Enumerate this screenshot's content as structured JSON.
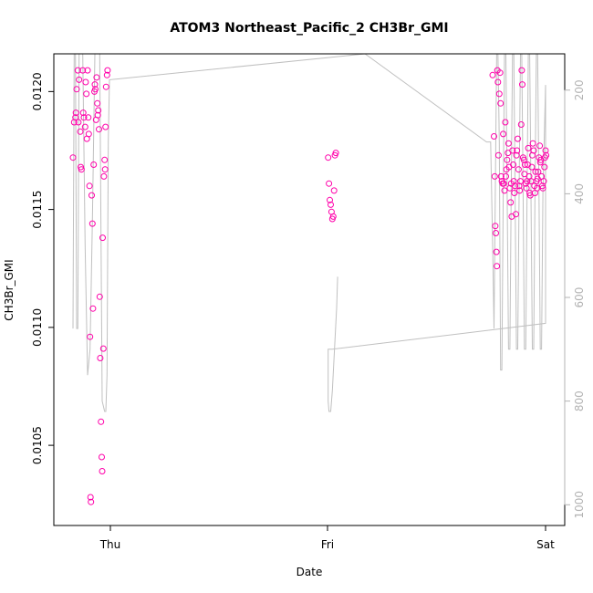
{
  "chart_data": {
    "type": "scatter",
    "title": "ATOM3 Northeast_Pacific_2 CH3Br_GMI",
    "xlabel": "Date",
    "ylabel": "CH3Br_GMI",
    "x_ticks": [
      "Thu",
      "Fri",
      "Sat"
    ],
    "y_ticks": [
      "0.0105",
      "0.0110",
      "0.0115",
      "0.0120"
    ],
    "ylim": [
      0.01016,
      0.01216
    ],
    "y2_ticks": [
      "200",
      "400",
      "600",
      "800",
      "1000"
    ],
    "y2lim": [
      1040,
      130
    ],
    "colors": {
      "points": "#ff00aa",
      "pressure_line": "#c0c0c0",
      "right_axis": "#b3b3b3"
    },
    "series": [
      {
        "type": "scatter",
        "points": [
          [
            -0.17,
            0.01172
          ],
          [
            -0.165,
            0.01187
          ],
          [
            -0.16,
            0.01189
          ],
          [
            -0.158,
            0.01191
          ],
          [
            -0.155,
            0.01201
          ],
          [
            -0.15,
            0.01209
          ],
          [
            -0.148,
            0.01187
          ],
          [
            -0.145,
            0.01205
          ],
          [
            -0.14,
            0.01183
          ],
          [
            -0.138,
            0.01168
          ],
          [
            -0.135,
            0.01167
          ],
          [
            -0.13,
            0.01209
          ],
          [
            -0.128,
            0.01191
          ],
          [
            -0.125,
            0.01189
          ],
          [
            -0.12,
            0.01185
          ],
          [
            -0.118,
            0.01204
          ],
          [
            -0.115,
            0.01199
          ],
          [
            -0.113,
            0.0118
          ],
          [
            -0.11,
            0.01209
          ],
          [
            -0.107,
            0.01189
          ],
          [
            -0.105,
            0.01182
          ],
          [
            -0.102,
            0.0116
          ],
          [
            -0.1,
            0.01096
          ],
          [
            -0.098,
            0.01028
          ],
          [
            -0.096,
            0.01026
          ],
          [
            -0.093,
            0.01156
          ],
          [
            -0.09,
            0.01144
          ],
          [
            -0.088,
            0.01108
          ],
          [
            -0.085,
            0.01169
          ],
          [
            -0.082,
            0.012
          ],
          [
            -0.08,
            0.01203
          ],
          [
            -0.078,
            0.01201
          ],
          [
            -0.075,
            0.01188
          ],
          [
            -0.073,
            0.01206
          ],
          [
            -0.07,
            0.01195
          ],
          [
            -0.068,
            0.0119
          ],
          [
            -0.066,
            0.01192
          ],
          [
            -0.063,
            0.01184
          ],
          [
            -0.06,
            0.01113
          ],
          [
            -0.058,
            0.01087
          ],
          [
            -0.055,
            0.0106
          ],
          [
            -0.052,
            0.01045
          ],
          [
            -0.05,
            0.01039
          ],
          [
            -0.048,
            0.01138
          ],
          [
            -0.045,
            0.01091
          ],
          [
            -0.043,
            0.01164
          ],
          [
            -0.04,
            0.01171
          ],
          [
            -0.038,
            0.01167
          ],
          [
            -0.036,
            0.01185
          ],
          [
            -0.034,
            0.01202
          ],
          [
            -0.03,
            0.01207
          ],
          [
            -0.028,
            0.01209
          ],
          [
            0.01,
            0.01172
          ],
          [
            0.012,
            0.01161
          ],
          [
            0.014,
            0.01154
          ],
          [
            0.016,
            0.01152
          ],
          [
            0.018,
            0.01149
          ],
          [
            0.02,
            0.01146
          ],
          [
            0.022,
            0.01147
          ],
          [
            0.024,
            0.01158
          ],
          [
            0.026,
            0.01173
          ],
          [
            0.028,
            0.01174
          ],
          [
            0.8,
            0.01207
          ],
          [
            0.805,
            0.01181
          ],
          [
            0.808,
            0.01164
          ],
          [
            0.81,
            0.01143
          ],
          [
            0.812,
            0.0114
          ],
          [
            0.814,
            0.01132
          ],
          [
            0.816,
            0.01126
          ],
          [
            0.818,
            0.01209
          ],
          [
            0.82,
            0.01204
          ],
          [
            0.822,
            0.01173
          ],
          [
            0.825,
            0.01199
          ],
          [
            0.828,
            0.01208
          ],
          [
            0.83,
            0.01195
          ],
          [
            0.832,
            0.01164
          ],
          [
            0.835,
            0.01162
          ],
          [
            0.838,
            0.01161
          ],
          [
            0.84,
            0.01182
          ],
          [
            0.842,
            0.01161
          ],
          [
            0.845,
            0.01158
          ],
          [
            0.848,
            0.01187
          ],
          [
            0.85,
            0.01164
          ],
          [
            0.852,
            0.01167
          ],
          [
            0.855,
            0.01171
          ],
          [
            0.858,
            0.01174
          ],
          [
            0.86,
            0.01178
          ],
          [
            0.862,
            0.01168
          ],
          [
            0.865,
            0.01159
          ],
          [
            0.868,
            0.01153
          ],
          [
            0.87,
            0.01161
          ],
          [
            0.872,
            0.01147
          ],
          [
            0.875,
            0.01175
          ],
          [
            0.878,
            0.01169
          ],
          [
            0.88,
            0.01162
          ],
          [
            0.882,
            0.01157
          ],
          [
            0.885,
            0.0116
          ],
          [
            0.888,
            0.01148
          ],
          [
            0.89,
            0.01173
          ],
          [
            0.892,
            0.01175
          ],
          [
            0.895,
            0.0118
          ],
          [
            0.898,
            0.01167
          ],
          [
            0.9,
            0.0116
          ],
          [
            0.902,
            0.01158
          ],
          [
            0.905,
            0.01162
          ],
          [
            0.908,
            0.01186
          ],
          [
            0.91,
            0.01209
          ],
          [
            0.912,
            0.01203
          ],
          [
            0.915,
            0.01172
          ],
          [
            0.918,
            0.01171
          ],
          [
            0.92,
            0.01165
          ],
          [
            0.922,
            0.01169
          ],
          [
            0.925,
            0.01161
          ],
          [
            0.928,
            0.01159
          ],
          [
            0.93,
            0.01162
          ],
          [
            0.932,
            0.01169
          ],
          [
            0.935,
            0.01176
          ],
          [
            0.938,
            0.01164
          ],
          [
            0.94,
            0.01157
          ],
          [
            0.942,
            0.01156
          ],
          [
            0.945,
            0.01162
          ],
          [
            0.948,
            0.01168
          ],
          [
            0.95,
            0.01173
          ],
          [
            0.952,
            0.01178
          ],
          [
            0.955,
            0.01175
          ],
          [
            0.958,
            0.0116
          ],
          [
            0.96,
            0.01157
          ],
          [
            0.962,
            0.01166
          ],
          [
            0.965,
            0.01162
          ],
          [
            0.968,
            0.01159
          ],
          [
            0.97,
            0.01163
          ],
          [
            0.972,
            0.01166
          ],
          [
            0.975,
            0.01172
          ],
          [
            0.978,
            0.01177
          ],
          [
            0.98,
            0.0117
          ],
          [
            0.982,
            0.01171
          ],
          [
            0.985,
            0.01164
          ],
          [
            0.988,
            0.0116
          ],
          [
            0.99,
            0.01159
          ],
          [
            0.993,
            0.01162
          ],
          [
            0.996,
            0.01168
          ],
          [
            0.998,
            0.01172
          ],
          [
            1.0,
            0.01175
          ],
          [
            1.002,
            0.01173
          ]
        ]
      },
      {
        "type": "line",
        "axis": "right",
        "points": [
          [
            -0.17,
            660
          ],
          [
            -0.165,
            120
          ],
          [
            -0.16,
            120
          ],
          [
            -0.155,
            660
          ],
          [
            -0.15,
            660
          ],
          [
            -0.145,
            120
          ],
          [
            -0.14,
            120
          ],
          [
            -0.13,
            120
          ],
          [
            -0.12,
            500
          ],
          [
            -0.11,
            750
          ],
          [
            -0.1,
            700
          ],
          [
            -0.09,
            450
          ],
          [
            -0.08,
            120
          ],
          [
            -0.06,
            120
          ],
          [
            -0.05,
            800
          ],
          [
            -0.04,
            820
          ],
          [
            -0.035,
            820
          ],
          [
            -0.03,
            750
          ],
          [
            -0.025,
            300
          ],
          [
            -0.02,
            180
          ],
          [
            0.17,
            130
          ],
          [
            0.77,
            300
          ],
          [
            0.79,
            300
          ],
          [
            0.8,
            500
          ],
          [
            0.805,
            660
          ],
          [
            0.81,
            400
          ],
          [
            0.815,
            120
          ],
          [
            0.82,
            120
          ],
          [
            0.825,
            300
          ],
          [
            0.83,
            740
          ],
          [
            0.835,
            740
          ],
          [
            0.84,
            400
          ],
          [
            0.845,
            120
          ],
          [
            0.85,
            120
          ],
          [
            0.855,
            400
          ],
          [
            0.86,
            700
          ],
          [
            0.865,
            700
          ],
          [
            0.87,
            400
          ],
          [
            0.875,
            120
          ],
          [
            0.88,
            120
          ],
          [
            0.885,
            400
          ],
          [
            0.89,
            700
          ],
          [
            0.895,
            700
          ],
          [
            0.9,
            400
          ],
          [
            0.905,
            120
          ],
          [
            0.91,
            120
          ],
          [
            0.915,
            400
          ],
          [
            0.92,
            700
          ],
          [
            0.925,
            700
          ],
          [
            0.93,
            400
          ],
          [
            0.935,
            120
          ],
          [
            0.94,
            120
          ],
          [
            0.945,
            400
          ],
          [
            0.95,
            700
          ],
          [
            0.955,
            700
          ],
          [
            0.96,
            400
          ],
          [
            0.965,
            120
          ],
          [
            0.97,
            120
          ],
          [
            0.975,
            400
          ],
          [
            0.98,
            700
          ],
          [
            0.985,
            700
          ],
          [
            0.99,
            400
          ],
          [
            1.0,
            190
          ],
          [
            1.0,
            650
          ],
          [
            0.02,
            700
          ],
          [
            0.01,
            700
          ],
          [
            0.01,
            800
          ],
          [
            0.012,
            820
          ],
          [
            0.016,
            820
          ],
          [
            0.02,
            780
          ],
          [
            0.03,
            620
          ],
          [
            0.035,
            560
          ]
        ]
      }
    ]
  }
}
